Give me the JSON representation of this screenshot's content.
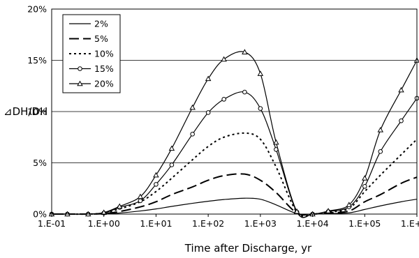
{
  "chart_data": {
    "type": "line",
    "xlabel": "Time after Discharge, yr",
    "ylabel": "⊿DH/DH",
    "x_scale": "log",
    "xlim": [
      0.1,
      1000000
    ],
    "ylim": [
      0,
      20
    ],
    "x_ticks": [
      {
        "value": 0.1,
        "label": "1.E-01"
      },
      {
        "value": 1,
        "label": "1.E+00"
      },
      {
        "value": 10,
        "label": "1.E+01"
      },
      {
        "value": 100,
        "label": "1.E+02"
      },
      {
        "value": 1000,
        "label": "1.E+03"
      },
      {
        "value": 10000,
        "label": "1.E+04"
      },
      {
        "value": 100000,
        "label": "1.E+05"
      },
      {
        "value": 1000000,
        "label": "1.E+06"
      }
    ],
    "y_ticks": [
      {
        "value": 0,
        "label": "0%"
      },
      {
        "value": 5,
        "label": "5%"
      },
      {
        "value": 10,
        "label": "10%"
      },
      {
        "value": 15,
        "label": "15%"
      },
      {
        "value": 20,
        "label": "20%"
      }
    ],
    "grid": true,
    "legend_position": "top-left",
    "series": [
      {
        "name": "2%",
        "style": "solid",
        "marker": "none",
        "points": [
          [
            0.1,
            0
          ],
          [
            0.2,
            0
          ],
          [
            0.5,
            0
          ],
          [
            1,
            0.02
          ],
          [
            2,
            0.1
          ],
          [
            5,
            0.3
          ],
          [
            10,
            0.5
          ],
          [
            20,
            0.75
          ],
          [
            50,
            1.05
          ],
          [
            100,
            1.25
          ],
          [
            200,
            1.42
          ],
          [
            500,
            1.55
          ],
          [
            1000,
            1.45
          ],
          [
            2000,
            0.9
          ],
          [
            5000,
            0.05
          ],
          [
            10000,
            0
          ],
          [
            20000,
            0.05
          ],
          [
            50000,
            0.12
          ],
          [
            100000,
            0.45
          ],
          [
            200000,
            0.8
          ],
          [
            500000,
            1.2
          ],
          [
            1000000,
            1.45
          ]
        ]
      },
      {
        "name": "5%",
        "style": "dash",
        "marker": "none",
        "points": [
          [
            0.1,
            0
          ],
          [
            0.2,
            0
          ],
          [
            0.5,
            0
          ],
          [
            1,
            0.05
          ],
          [
            2,
            0.25
          ],
          [
            5,
            0.7
          ],
          [
            10,
            1.2
          ],
          [
            20,
            1.9
          ],
          [
            50,
            2.65
          ],
          [
            100,
            3.3
          ],
          [
            200,
            3.75
          ],
          [
            500,
            3.9
          ],
          [
            1000,
            3.3
          ],
          [
            2000,
            2.1
          ],
          [
            5000,
            0.1
          ],
          [
            10000,
            0
          ],
          [
            20000,
            0.12
          ],
          [
            50000,
            0.3
          ],
          [
            100000,
            1.2
          ],
          [
            200000,
            1.9
          ],
          [
            500000,
            3
          ],
          [
            1000000,
            3.6
          ]
        ]
      },
      {
        "name": "10%",
        "style": "dot",
        "marker": "none",
        "points": [
          [
            0.1,
            0
          ],
          [
            0.2,
            0
          ],
          [
            0.5,
            0
          ],
          [
            1,
            0.1
          ],
          [
            2,
            0.5
          ],
          [
            5,
            1.2
          ],
          [
            10,
            2.2
          ],
          [
            20,
            3.5
          ],
          [
            50,
            5.3
          ],
          [
            100,
            6.6
          ],
          [
            200,
            7.5
          ],
          [
            500,
            7.9
          ],
          [
            1000,
            7.3
          ],
          [
            2000,
            4.6
          ],
          [
            5000,
            0.2
          ],
          [
            10000,
            0
          ],
          [
            20000,
            0.2
          ],
          [
            50000,
            0.55
          ],
          [
            100000,
            2.2
          ],
          [
            200000,
            3.8
          ],
          [
            500000,
            5.8
          ],
          [
            1000000,
            7.3
          ]
        ]
      },
      {
        "name": "15%",
        "style": "solid",
        "marker": "circle",
        "points": [
          [
            0.1,
            0
          ],
          [
            0.2,
            0
          ],
          [
            0.5,
            0
          ],
          [
            1,
            0.1
          ],
          [
            2,
            0.65
          ],
          [
            5,
            1.3
          ],
          [
            10,
            2.9
          ],
          [
            20,
            4.8
          ],
          [
            50,
            7.8
          ],
          [
            100,
            9.9
          ],
          [
            200,
            11.2
          ],
          [
            500,
            11.9
          ],
          [
            1000,
            10.3
          ],
          [
            2000,
            6.3
          ],
          [
            5000,
            0.2
          ],
          [
            10000,
            0
          ],
          [
            20000,
            0.25
          ],
          [
            50000,
            0.7
          ],
          [
            100000,
            2.7
          ],
          [
            200000,
            6.1
          ],
          [
            500000,
            9.1
          ],
          [
            1000000,
            11.3
          ]
        ]
      },
      {
        "name": "20%",
        "style": "solid",
        "marker": "triangle",
        "points": [
          [
            0.1,
            0
          ],
          [
            0.2,
            0
          ],
          [
            0.5,
            0
          ],
          [
            1,
            0.15
          ],
          [
            2,
            0.75
          ],
          [
            5,
            1.7
          ],
          [
            10,
            3.8
          ],
          [
            20,
            6.4
          ],
          [
            50,
            10.4
          ],
          [
            100,
            13.2
          ],
          [
            200,
            15.1
          ],
          [
            500,
            15.8
          ],
          [
            1000,
            13.7
          ],
          [
            2000,
            7.0
          ],
          [
            5000,
            0.25
          ],
          [
            10000,
            0
          ],
          [
            20000,
            0.3
          ],
          [
            50000,
            0.9
          ],
          [
            100000,
            3.5
          ],
          [
            200000,
            8.2
          ],
          [
            500000,
            12.1
          ],
          [
            1000000,
            15.0
          ]
        ]
      }
    ]
  }
}
